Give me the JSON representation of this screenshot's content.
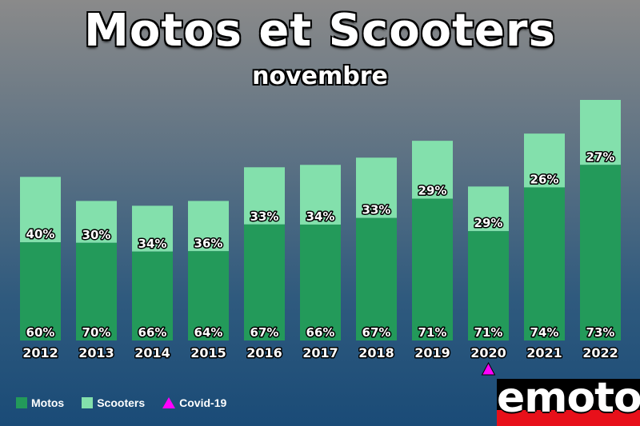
{
  "header": {
    "title": "Motos et Scooters",
    "subtitle": "novembre"
  },
  "legend": {
    "motos": "Motos",
    "scooters": "Scooters",
    "covid": "Covid-19"
  },
  "logo": {
    "text": "emoto"
  },
  "colors": {
    "motos": "#239a5a",
    "scooters": "#83e0ac",
    "covid": "#ff00ff",
    "logo_red": "#e8101a"
  },
  "chart_data": {
    "type": "bar",
    "stacked": true,
    "title": "Motos et Scooters",
    "subtitle": "novembre",
    "categories": [
      "2012",
      "2013",
      "2014",
      "2015",
      "2016",
      "2017",
      "2018",
      "2019",
      "2020",
      "2021",
      "2022"
    ],
    "series": [
      {
        "name": "Motos",
        "values": [
          60,
          70,
          66,
          64,
          67,
          66,
          67,
          71,
          71,
          74,
          73
        ],
        "labels": [
          "60%",
          "70%",
          "66%",
          "64%",
          "67%",
          "66%",
          "67%",
          "71%",
          "71%",
          "74%",
          "73%"
        ]
      },
      {
        "name": "Scooters",
        "values": [
          40,
          30,
          34,
          36,
          33,
          34,
          33,
          29,
          29,
          26,
          27
        ],
        "labels": [
          "40%",
          "30%",
          "34%",
          "36%",
          "33%",
          "34%",
          "33%",
          "29%",
          "29%",
          "26%",
          "27%"
        ]
      }
    ],
    "relative_totals": [
      0.68,
      0.58,
      0.56,
      0.58,
      0.72,
      0.73,
      0.76,
      0.83,
      0.64,
      0.86,
      1.0
    ],
    "marker": {
      "category": "2020",
      "name": "Covid-19",
      "symbol": "triangle"
    },
    "legend_position": "bottom-left",
    "grid": false
  }
}
